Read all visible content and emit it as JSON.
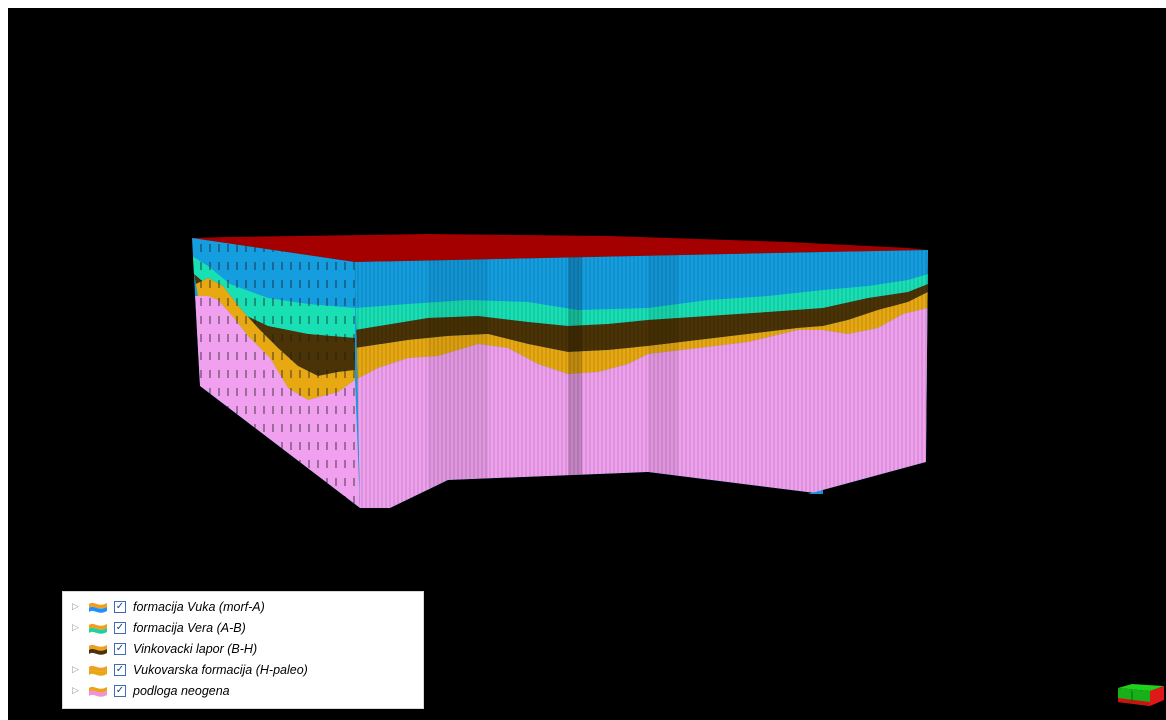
{
  "viewer": {
    "background": "#000000"
  },
  "model": {
    "top_surface_color": "#a40000",
    "layers": [
      {
        "id": "vuka",
        "color": "#149ee0"
      },
      {
        "id": "vera",
        "color": "#18e0b4"
      },
      {
        "id": "vinkovacki",
        "color": "#4a3306"
      },
      {
        "id": "vukovarska",
        "color": "#e8a812"
      },
      {
        "id": "podloga",
        "color": "#f0a0ee"
      }
    ]
  },
  "legend": {
    "items": [
      {
        "label": "formacija Vuka (morf-A)",
        "expander": "▷",
        "checked": "✓",
        "swatch_colors": [
          "#f0a020",
          "#1e90ff"
        ]
      },
      {
        "label": "formacija Vera (A-B)",
        "expander": "▷",
        "checked": "✓",
        "swatch_colors": [
          "#f0a020",
          "#20d0a0"
        ]
      },
      {
        "label": "Vinkovacki lapor (B-H)",
        "expander": "",
        "checked": "✓",
        "swatch_colors": [
          "#f0a020",
          "#4a3306"
        ]
      },
      {
        "label": "Vukovarska formacija (H-paleo)",
        "expander": "▷",
        "checked": "✓",
        "swatch_colors": [
          "#f0a020",
          "#e8a812"
        ]
      },
      {
        "label": "podloga neogena",
        "expander": "▷",
        "checked": "✓",
        "swatch_colors": [
          "#f0a020",
          "#f090e0"
        ]
      }
    ]
  },
  "navigation_cube": {
    "colors": [
      "#18c018",
      "#e01818"
    ]
  }
}
